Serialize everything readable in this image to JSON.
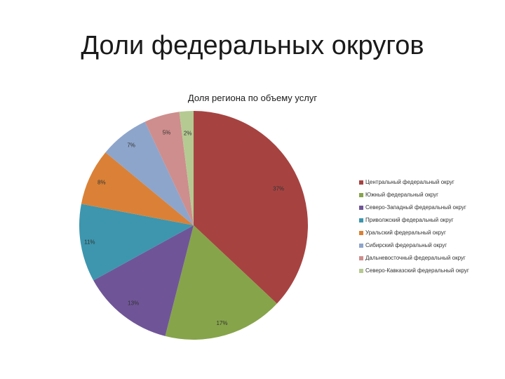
{
  "slide": {
    "title": "Доли федеральных округов"
  },
  "chart_data": {
    "type": "pie",
    "title": "Доля региона по объему услуг",
    "legend_position": "right",
    "slices": [
      {
        "name": "Центральный федеральный округ",
        "label": "37%",
        "value": 37,
        "color": "#a64341"
      },
      {
        "name": "Южный федеральный округ",
        "label": "17%",
        "value": 17,
        "color": "#86a44a"
      },
      {
        "name": "Северо-Западный федеральный округ",
        "label": "13%",
        "value": 13,
        "color": "#6f5597"
      },
      {
        "name": "Приволжский федеральный округ",
        "label": "11%",
        "value": 11,
        "color": "#3d96ae"
      },
      {
        "name": "Уральский федеральный округ",
        "label": "8%",
        "value": 8,
        "color": "#da8137"
      },
      {
        "name": "Сибирский федеральный округ",
        "label": "7%",
        "value": 7,
        "color": "#8ea5cb"
      },
      {
        "name": "Дальневосточный федеральный округ",
        "label": "5%",
        "value": 5,
        "color": "#ce8e8d"
      },
      {
        "name": "Северо-Кавказский федеральный округ",
        "label": "2%",
        "value": 2,
        "color": "#b5ca92"
      }
    ]
  }
}
